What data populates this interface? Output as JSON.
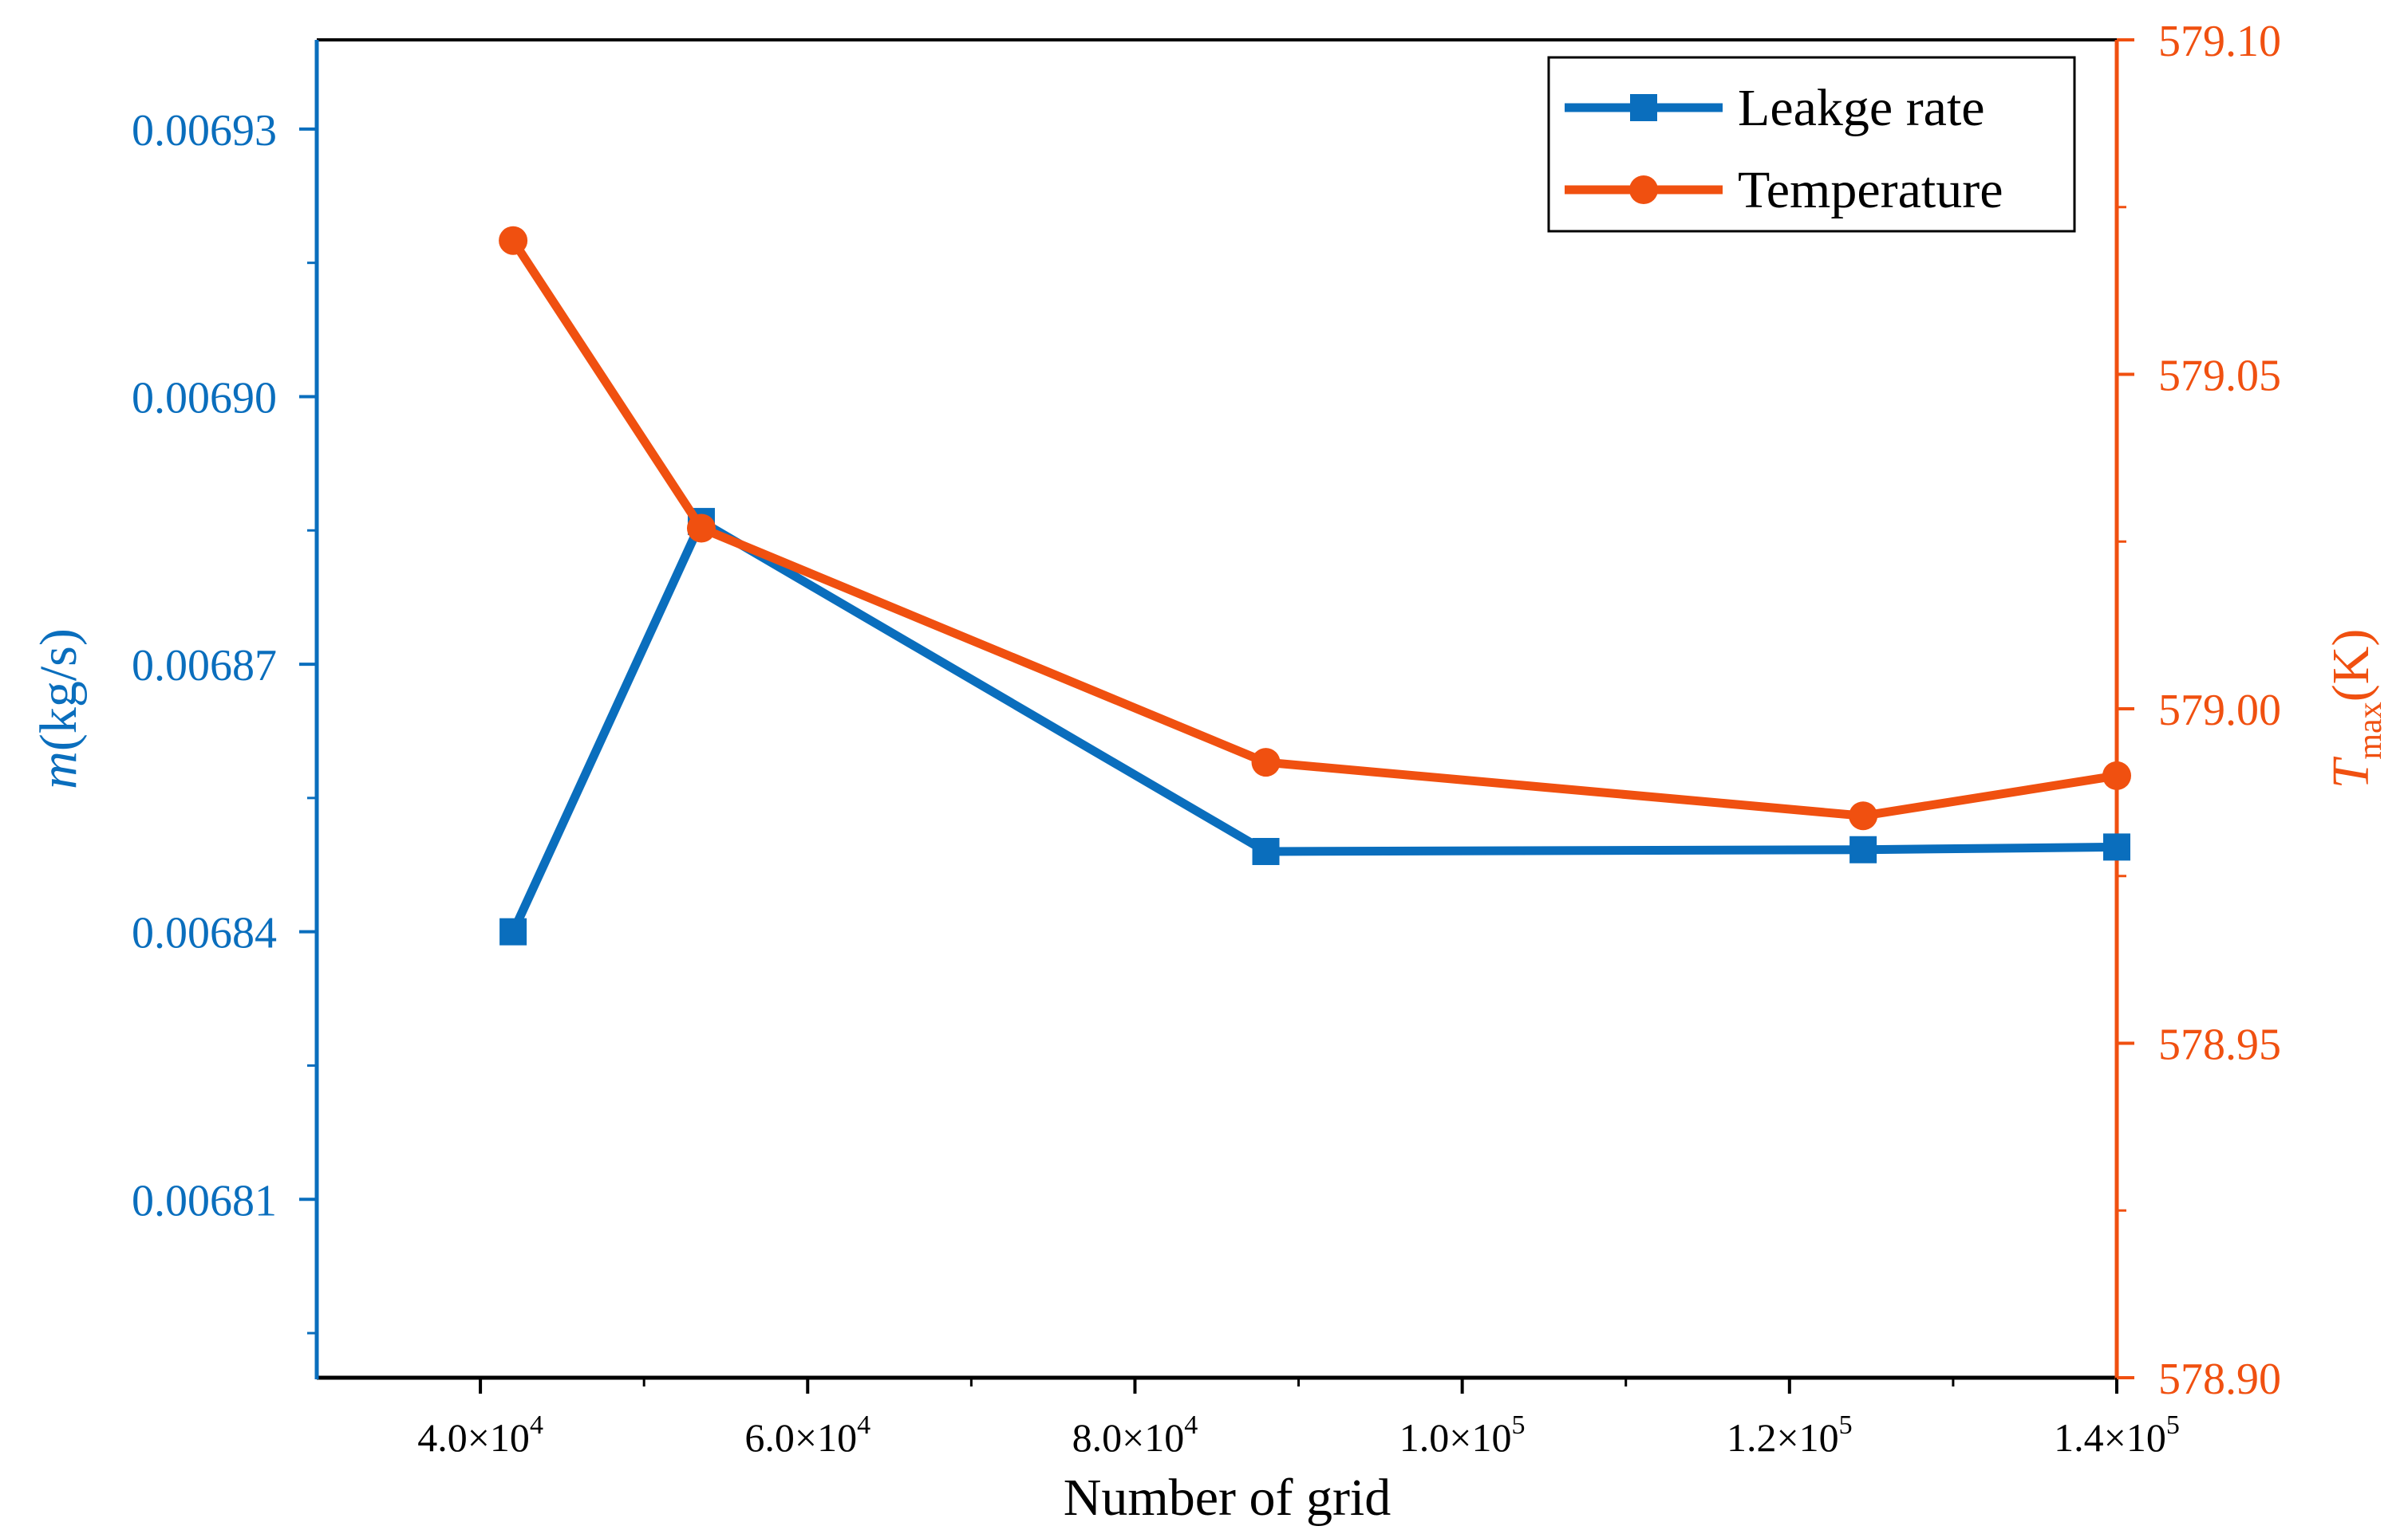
{
  "chart_data": {
    "type": "line",
    "xlabel": "Number of grid",
    "ylabel_left": {
      "italic": "m",
      "rest": "(kg/s)"
    },
    "ylabel_right": {
      "italic": "T",
      "sub": "max",
      "rest": "(K)"
    },
    "x": [
      42000,
      53500,
      88000,
      124500,
      140000
    ],
    "xlim": [
      30000,
      140000
    ],
    "x_ticks": [
      {
        "value": 40000,
        "mantissa": "4.0",
        "exp": "4"
      },
      {
        "value": 60000,
        "mantissa": "6.0",
        "exp": "4"
      },
      {
        "value": 80000,
        "mantissa": "8.0",
        "exp": "4"
      },
      {
        "value": 100000,
        "mantissa": "1.0",
        "exp": "5"
      },
      {
        "value": 120000,
        "mantissa": "1.2",
        "exp": "5"
      },
      {
        "value": 140000,
        "mantissa": "1.4",
        "exp": "5"
      }
    ],
    "ylim_left": [
      0.00679,
      0.00694
    ],
    "y_ticks_left": [
      "0.00681",
      "0.00684",
      "0.00687",
      "0.00690",
      "0.00693"
    ],
    "ylim_right": [
      578.9,
      579.1
    ],
    "y_ticks_right": [
      "578.90",
      "578.95",
      "579.00",
      "579.05",
      "579.10"
    ],
    "series": [
      {
        "name": "Leakge rate",
        "axis": "left",
        "marker": "square",
        "color": "#0a6ebd",
        "values": [
          0.00684,
          0.006886,
          0.006849,
          0.0068492,
          0.0068495
        ]
      },
      {
        "name": "Temperature",
        "axis": "right",
        "marker": "circle",
        "color": "#f05010",
        "values": [
          579.07,
          579.027,
          578.992,
          578.984,
          578.99
        ]
      }
    ],
    "legend_position": "top-right",
    "grid": false
  }
}
